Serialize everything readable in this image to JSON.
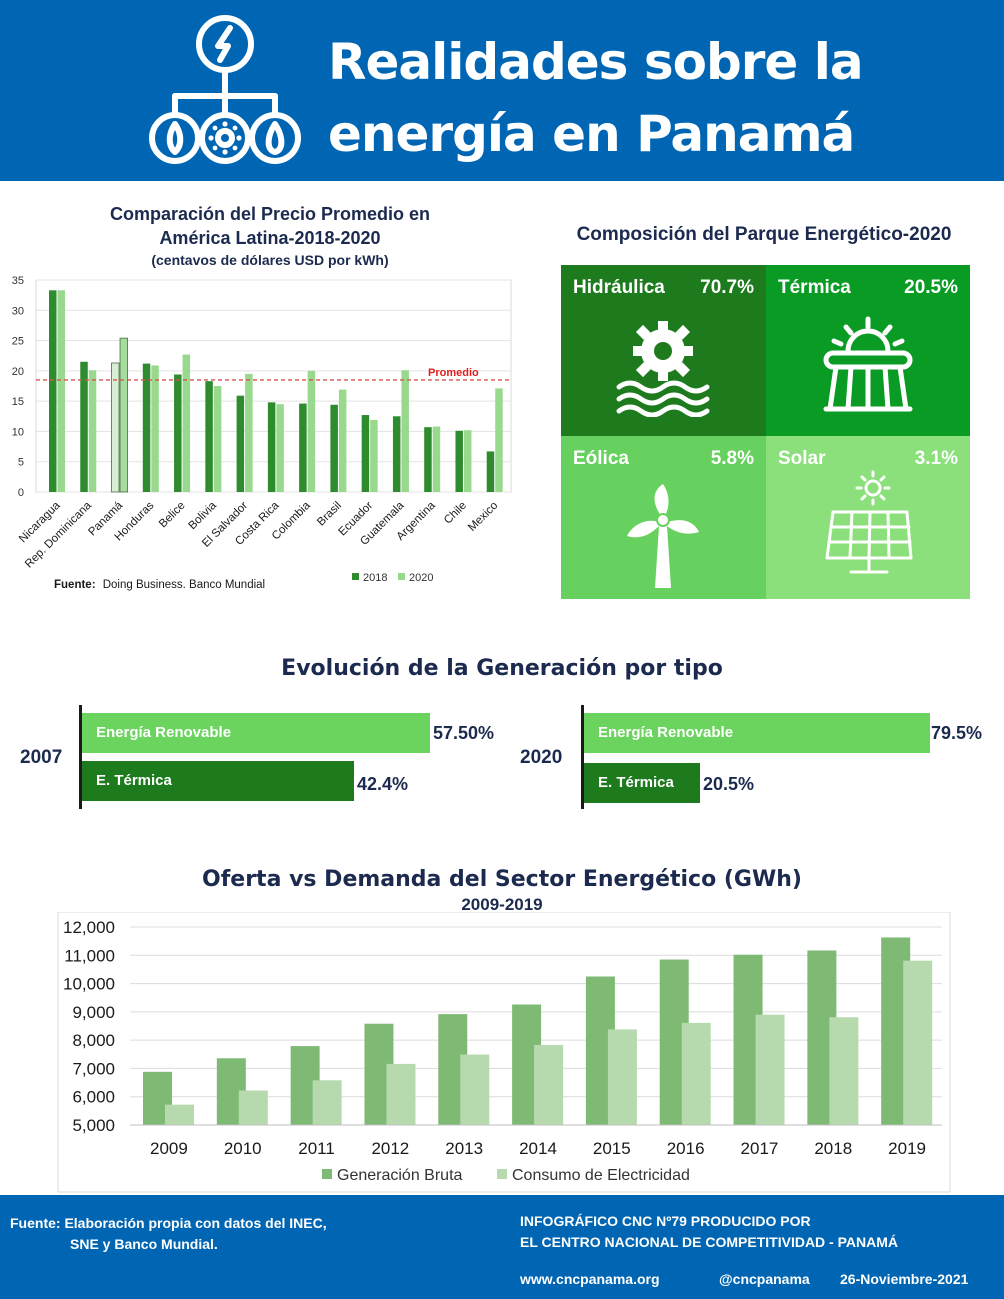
{
  "header": {
    "title_line1": "Realidades sobre la",
    "title_line2": "energía en Panamá",
    "logo_icon": "energy-network-icon"
  },
  "price_chart": {
    "title_line1": "Comparación del Precio Promedio en",
    "title_line2": "América Latina-2018-2020",
    "subtitle": "(centavos de dólares USD por kWh)",
    "source_label": "Fuente:",
    "source_text": "Doing Business. Banco Mundial",
    "average_label": "Promedio"
  },
  "composition": {
    "title": "Composición del Parque Energético-2020",
    "tiles": [
      {
        "name": "Hidráulica",
        "pct": "70.7%",
        "icon": "hydro-gear-icon",
        "color": "#1d7a1d"
      },
      {
        "name": "Térmica",
        "pct": "20.5%",
        "icon": "thermal-plant-icon",
        "color": "#0a9b25"
      },
      {
        "name": "Eólica",
        "pct": "5.8%",
        "icon": "wind-turbine-icon",
        "color": "#67d15f"
      },
      {
        "name": "Solar",
        "pct": "3.1%",
        "icon": "solar-panel-icon",
        "color": "#8be07c"
      }
    ]
  },
  "evolution": {
    "title": "Evolución de la Generación por tipo",
    "groups": [
      {
        "year": "2007",
        "renewable_label": "Energía Renovable",
        "renewable_value": "57.50%",
        "thermal_label": "E. Térmica",
        "thermal_value": "42.4%"
      },
      {
        "year": "2020",
        "renewable_label": "Energía Renovable",
        "renewable_value": "79.5%",
        "thermal_label": "E. Térmica",
        "thermal_value": "20.5%"
      }
    ]
  },
  "supply": {
    "title": "Oferta vs Demanda del Sector Energético (GWh)",
    "subtitle": "2009-2019"
  },
  "chart_data": [
    {
      "type": "bar",
      "title": "Comparación del Precio Promedio en América Latina-2018-2020",
      "subtitle": "(centavos de dólares USD por kWh)",
      "ylim": [
        0,
        35
      ],
      "yticks": [
        0,
        5,
        10,
        15,
        20,
        25,
        30,
        35
      ],
      "grid": true,
      "average_line": 18.5,
      "average_label": "Promedio",
      "categories": [
        "Nicaragua",
        "Rep. Dominicana",
        "Panamá",
        "Honduras",
        "Belice",
        "Bolivia",
        "El Salvador",
        "Costa Rica",
        "Colombia",
        "Brasil",
        "Ecuador",
        "Guatemala",
        "Argentina",
        "Chile",
        "Mexico"
      ],
      "series": [
        {
          "name": "2018",
          "color": "#2e8b2e",
          "values": [
            33.3,
            21.5,
            21.3,
            21.2,
            19.4,
            18.3,
            15.9,
            14.8,
            14.6,
            14.4,
            12.7,
            12.5,
            10.7,
            10.1,
            6.7
          ]
        },
        {
          "name": "2020",
          "color": "#98d98e",
          "values": [
            33.3,
            20.1,
            25.4,
            20.9,
            22.7,
            17.5,
            19.5,
            14.5,
            20.0,
            16.9,
            11.9,
            20.1,
            10.8,
            10.2,
            17.1
          ]
        }
      ],
      "highlight_category": "Panamá",
      "legend": "bottom-right",
      "source": "Fuente: Doing Business. Banco Mundial"
    },
    {
      "type": "bar",
      "title": "Oferta vs Demanda del Sector Energético (GWh)",
      "subtitle": "2009-2019",
      "ylim": [
        5000,
        12000
      ],
      "yticks": [
        5000,
        6000,
        7000,
        8000,
        9000,
        10000,
        11000,
        12000
      ],
      "ytick_labels": [
        "5,000",
        "6,000",
        "7,000",
        "8,000",
        "9,000",
        "10,000",
        "11,000",
        "12,000"
      ],
      "grid": true,
      "categories": [
        "2009",
        "2010",
        "2011",
        "2012",
        "2013",
        "2014",
        "2015",
        "2016",
        "2017",
        "2018",
        "2019"
      ],
      "series": [
        {
          "name": "Generación Bruta",
          "color": "#7fba74",
          "values": [
            6880,
            7360,
            7790,
            8580,
            8920,
            9260,
            10250,
            10850,
            11020,
            11170,
            11630
          ]
        },
        {
          "name": "Consumo de Electricidad",
          "color": "#b6d9ad",
          "values": [
            5720,
            6220,
            6580,
            7160,
            7490,
            7830,
            8380,
            8610,
            8900,
            8810,
            10810
          ]
        }
      ],
      "legend": "bottom"
    }
  ],
  "footer": {
    "source_line1": "Fuente: Elaboración propia con datos del INEC,",
    "source_line2": "SNE y Banco Mundial.",
    "info_line1": "INFOGRÁFICO CNC Nº79 PRODUCIDO POR",
    "info_line2": "EL CENTRO NACIONAL DE COMPETITIVIDAD - PANAMÁ",
    "website": "www.cncpanama.org",
    "handle": "@cncpanama",
    "date": "26-Noviembre-2021"
  }
}
